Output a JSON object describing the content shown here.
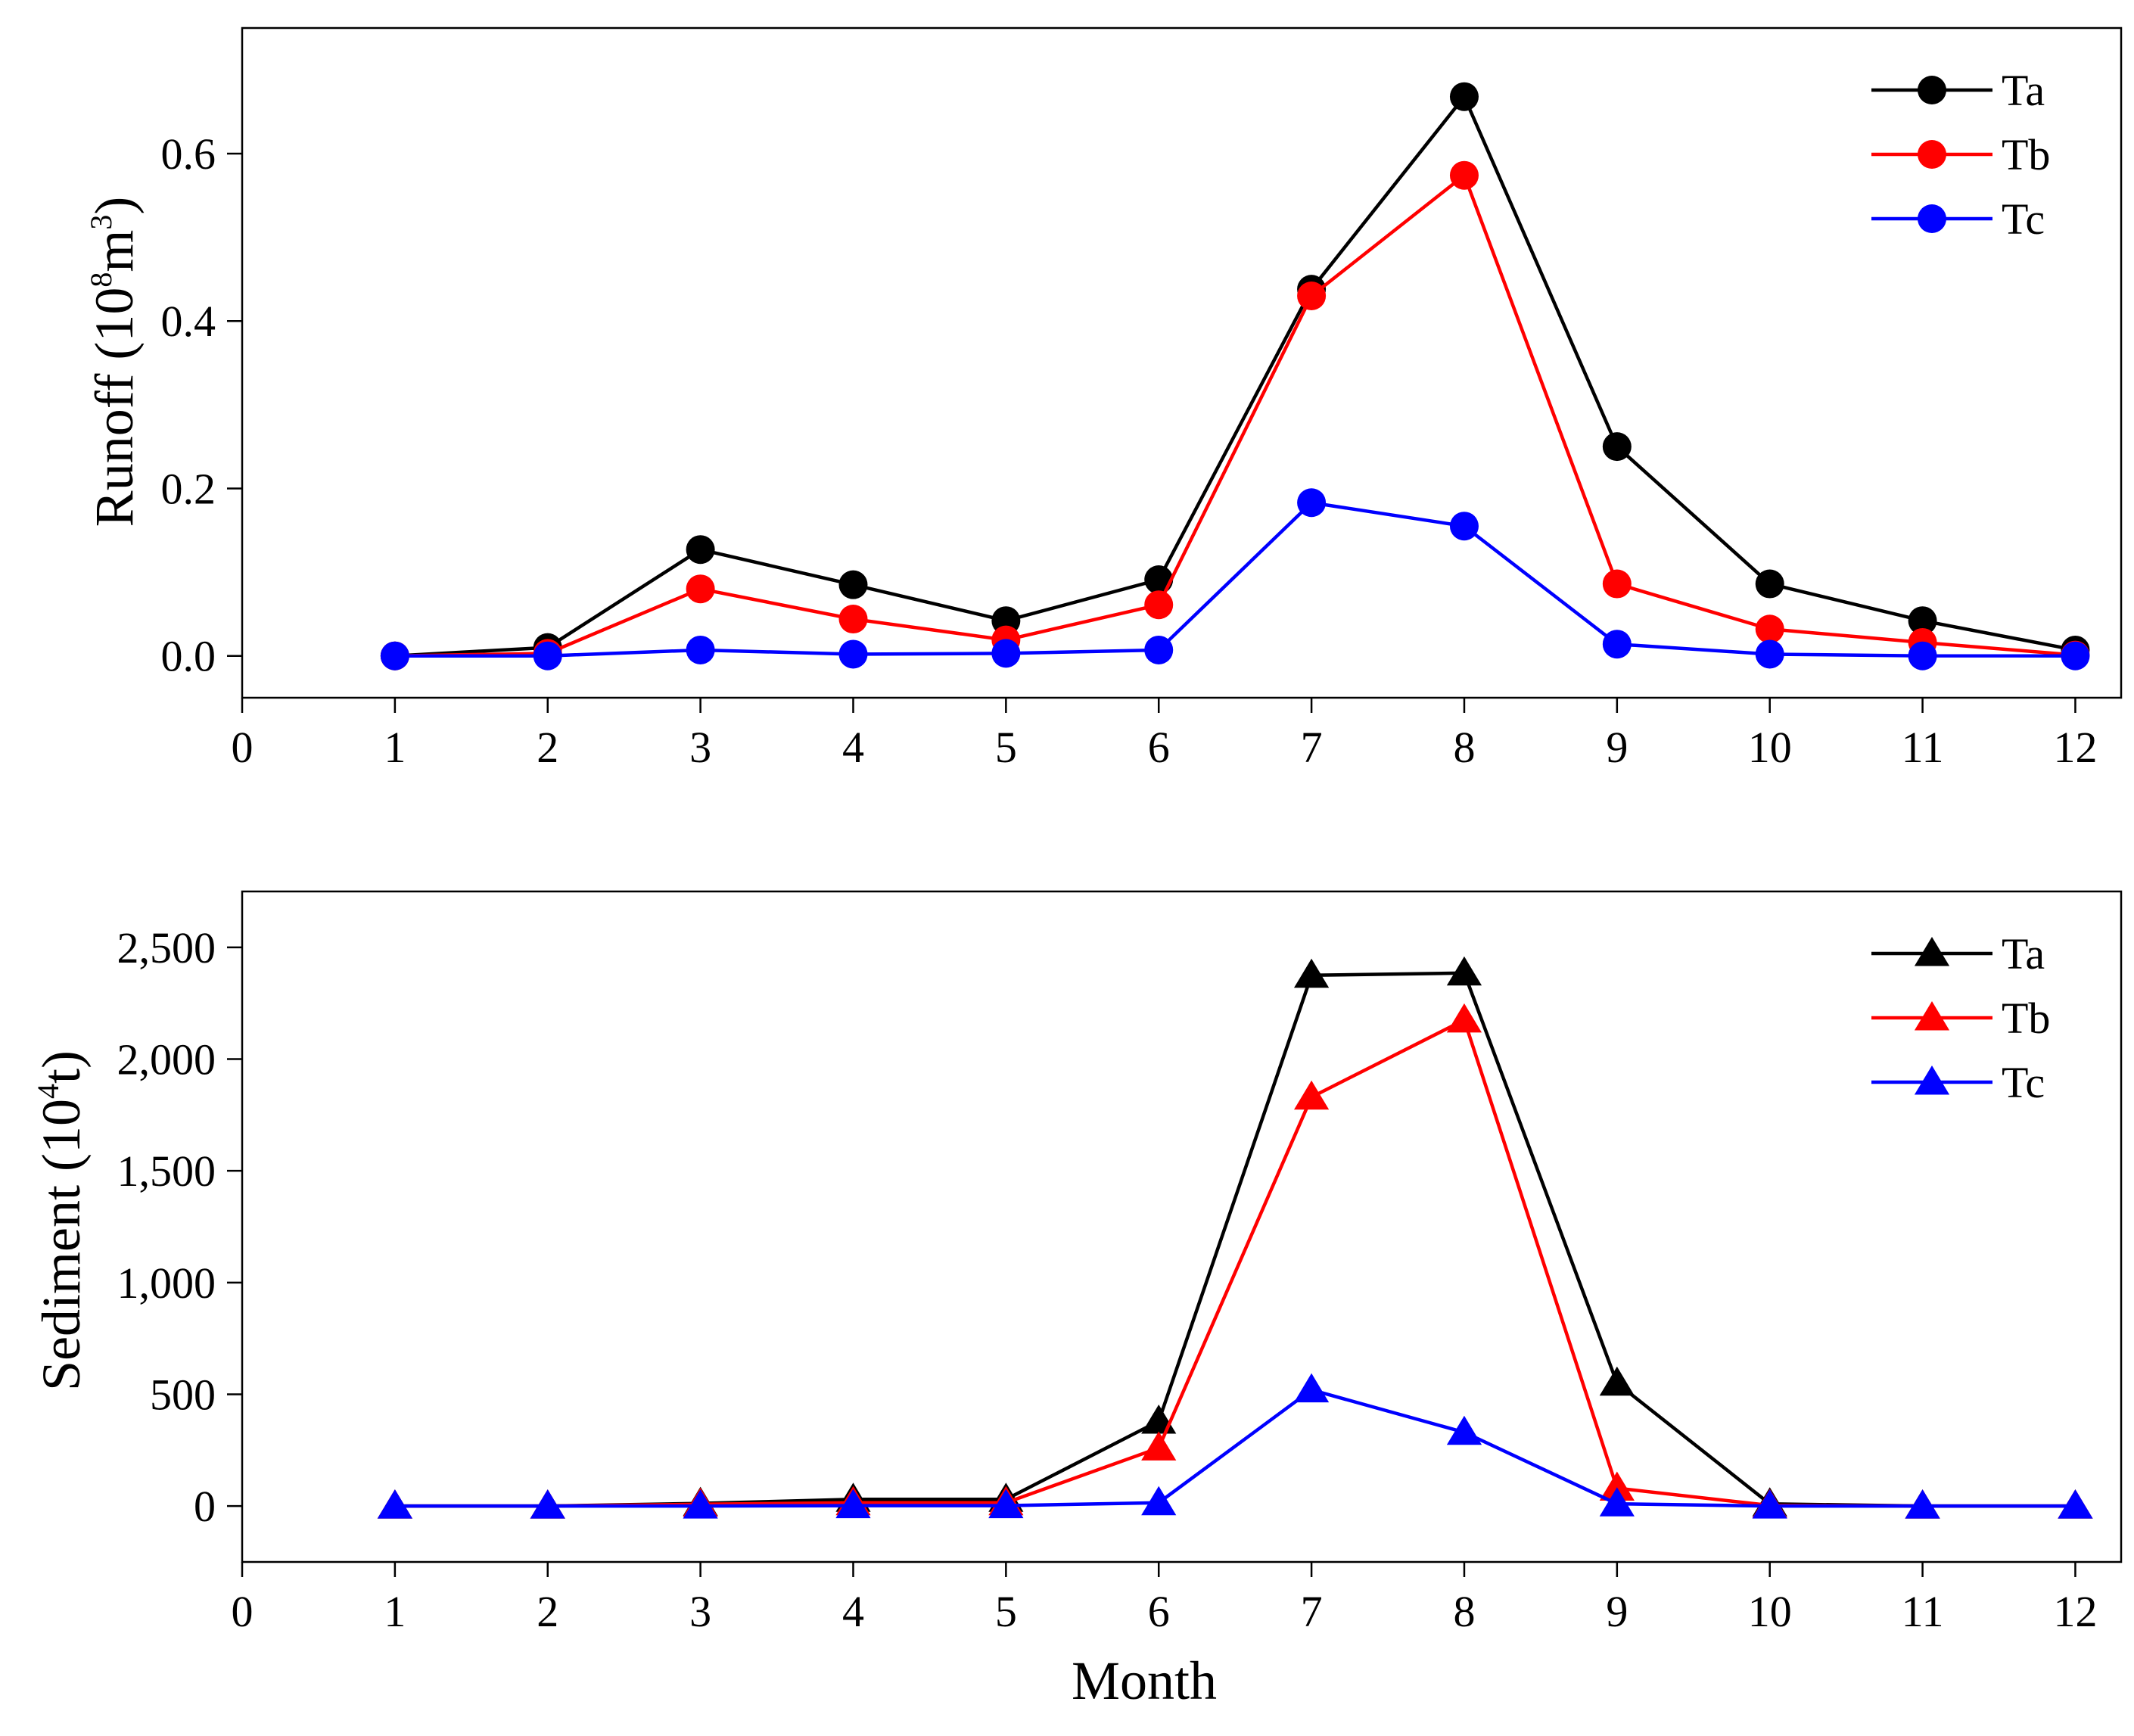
{
  "x_axis_title": "Month",
  "chart_data": [
    {
      "type": "line",
      "marker": "circle",
      "ylabel": "Runoff (10",
      "ylabel_sup1": "8",
      "ylabel_mid": "m",
      "ylabel_sup2": "3",
      "ylabel_end": ")",
      "x": [
        1,
        2,
        3,
        4,
        5,
        6,
        7,
        8,
        9,
        10,
        11,
        12
      ],
      "xlim": [
        0,
        12.3
      ],
      "ylim": [
        -0.05,
        0.75
      ],
      "xticks": [
        0,
        1,
        2,
        3,
        4,
        5,
        6,
        7,
        8,
        9,
        10,
        11,
        12
      ],
      "yticks": [
        0.0,
        0.2,
        0.4,
        0.6
      ],
      "ytick_labels": [
        "0.0",
        "0.2",
        "0.4",
        "0.6"
      ],
      "legend": "top-right",
      "series": [
        {
          "name": "Ta",
          "color": "#000000",
          "values": [
            0.0,
            0.01,
            0.127,
            0.085,
            0.042,
            0.091,
            0.438,
            0.668,
            0.25,
            0.086,
            0.042,
            0.007
          ]
        },
        {
          "name": "Tb",
          "color": "#ff0000",
          "values": [
            0.0,
            0.003,
            0.08,
            0.044,
            0.019,
            0.061,
            0.43,
            0.574,
            0.086,
            0.032,
            0.016,
            0.001
          ]
        },
        {
          "name": "Tc",
          "color": "#0000ff",
          "values": [
            0.0,
            0.0,
            0.007,
            0.002,
            0.003,
            0.007,
            0.183,
            0.155,
            0.014,
            0.002,
            0.0,
            0.0
          ]
        }
      ]
    },
    {
      "type": "line",
      "marker": "triangle",
      "ylabel": "Sediment (10",
      "ylabel_sup1": "4",
      "ylabel_mid": "t)",
      "ylabel_sup2": "",
      "ylabel_end": "",
      "x": [
        1,
        2,
        3,
        4,
        5,
        6,
        7,
        8,
        9,
        10,
        11,
        12
      ],
      "xlim": [
        0,
        12.3
      ],
      "ylim": [
        -250,
        2750
      ],
      "xticks": [
        0,
        1,
        2,
        3,
        4,
        5,
        6,
        7,
        8,
        9,
        10,
        11,
        12
      ],
      "yticks": [
        0,
        500,
        1000,
        1500,
        2000,
        2500
      ],
      "ytick_labels": [
        "0",
        "500",
        "1,000",
        "1,500",
        "2,000",
        "2,500"
      ],
      "legend": "top-right",
      "series": [
        {
          "name": "Ta",
          "color": "#000000",
          "values": [
            0,
            0,
            12,
            30,
            30,
            380,
            2375,
            2385,
            550,
            10,
            0,
            0
          ]
        },
        {
          "name": "Tb",
          "color": "#ff0000",
          "values": [
            0,
            0,
            8,
            15,
            15,
            260,
            1830,
            2175,
            80,
            3,
            0,
            0
          ]
        },
        {
          "name": "Tc",
          "color": "#0000ff",
          "values": [
            0,
            0,
            0,
            2,
            2,
            15,
            520,
            330,
            10,
            0,
            0,
            0
          ]
        }
      ]
    }
  ]
}
